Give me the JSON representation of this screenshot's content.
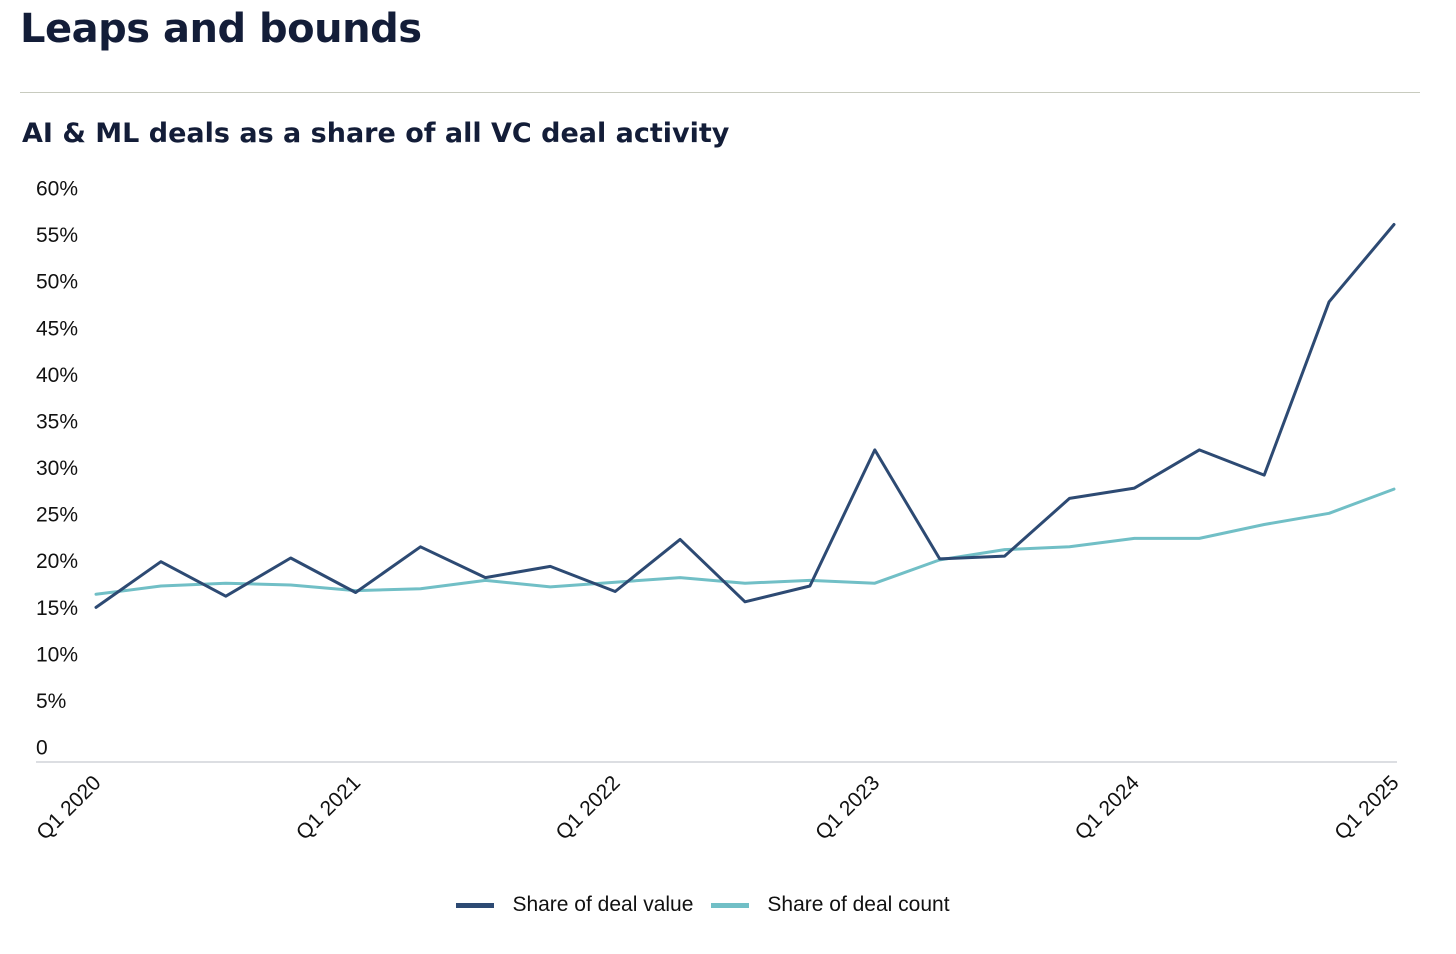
{
  "heading": "Leaps and bounds",
  "chart_data": {
    "type": "line",
    "title": "AI & ML deals as a share of all VC deal activity",
    "xlabel": "",
    "ylabel": "",
    "ylim": [
      0,
      60
    ],
    "yticks": [
      "0",
      "5%",
      "10%",
      "15%",
      "20%",
      "25%",
      "30%",
      "35%",
      "40%",
      "45%",
      "50%",
      "55%",
      "60%"
    ],
    "x": [
      "Q1 2020",
      "Q2 2020",
      "Q3 2020",
      "Q4 2020",
      "Q1 2021",
      "Q2 2021",
      "Q3 2021",
      "Q4 2021",
      "Q1 2022",
      "Q2 2022",
      "Q3 2022",
      "Q4 2022",
      "Q1 2023",
      "Q2 2023",
      "Q3 2023",
      "Q4 2023",
      "Q1 2024",
      "Q2 2024",
      "Q3 2024",
      "Q4 2024",
      "Q1 2025"
    ],
    "xtick_labels": [
      "Q1 2020",
      "Q1 2021",
      "Q1 2022",
      "Q1 2023",
      "Q1 2024",
      "Q1 2025"
    ],
    "series": [
      {
        "name": "Share of deal value",
        "color": "#2d4a73",
        "values": [
          15.2,
          20.1,
          16.4,
          20.5,
          16.8,
          21.7,
          18.4,
          19.6,
          16.9,
          22.5,
          15.8,
          17.5,
          32.1,
          20.4,
          20.7,
          26.9,
          28.0,
          32.1,
          29.4,
          48.0,
          56.3
        ]
      },
      {
        "name": "Share of deal count",
        "color": "#71bfc6",
        "values": [
          16.6,
          17.5,
          17.8,
          17.6,
          17.0,
          17.2,
          18.1,
          17.4,
          17.9,
          18.4,
          17.8,
          18.1,
          17.8,
          20.3,
          21.4,
          21.7,
          22.6,
          22.6,
          24.1,
          25.3,
          27.9
        ]
      }
    ],
    "grid": false,
    "legend_position": "bottom-center"
  }
}
